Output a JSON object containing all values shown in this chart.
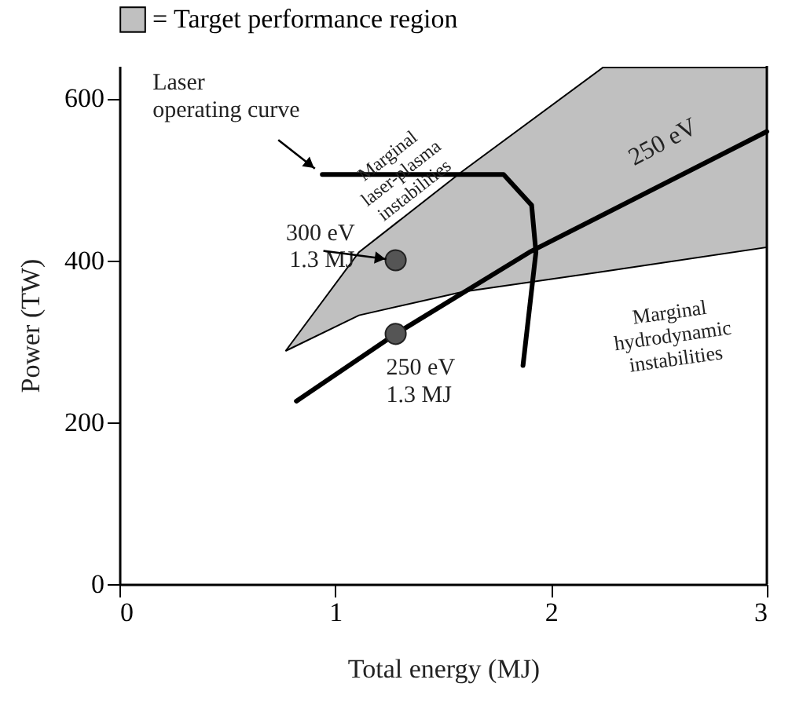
{
  "chart_data": {
    "type": "line",
    "xlabel": "Total energy (MJ)",
    "ylabel": "Power (TW)",
    "xlim": [
      0,
      3
    ],
    "ylim": [
      0,
      640
    ],
    "xticks": [
      0,
      1,
      2,
      3
    ],
    "yticks": [
      0,
      200,
      400,
      600
    ],
    "grid": false,
    "legend": "top",
    "series": [
      {
        "name": "= Target performance region",
        "color": "#c0c0c0",
        "x": [
          0.77,
          1.11,
          1.59,
          2.24,
          3
        ],
        "values": [
          null,
          null,
          null,
          null,
          null
        ],
        "lower": [
          288,
          332,
          361,
          386,
          416
        ],
        "upper": [
          288,
          410,
          510,
          638,
          638
        ]
      },
      {
        "color": "#000000",
        "x": [
          0.94,
          1.78,
          1.91,
          1.93,
          1.87
        ],
        "values": [
          506,
          506,
          468,
          410,
          270
        ]
      },
      {
        "color": "#000000",
        "x": [
          0.82,
          1.28,
          1.9,
          3
        ],
        "values": [
          226,
          309,
          410,
          559
        ]
      },
      {
        "type": "scatter",
        "color": "#555555",
        "marker": "circle",
        "x": [
          1.28,
          1.28
        ],
        "values": [
          400,
          309
        ]
      }
    ],
    "annotations": [
      {
        "text": "Laser\noperating curve",
        "x": 0.94,
        "y": 506
      },
      {
        "text": "300 eV\n1.3 MJ",
        "x": 1.28,
        "y": 400
      },
      {
        "text": "250 eV\n1.3 MJ",
        "x": 1.28,
        "y": 309
      },
      {
        "text": "250 eV",
        "x": 2.6,
        "y": 505
      },
      {
        "text": "Marginal\nlaser-plasma\ninstabilities",
        "x": 1.36,
        "y": 470
      },
      {
        "text": "Marginal\nhydrodynamic\ninstabilities",
        "x": 2.5,
        "y": 400
      }
    ]
  }
}
